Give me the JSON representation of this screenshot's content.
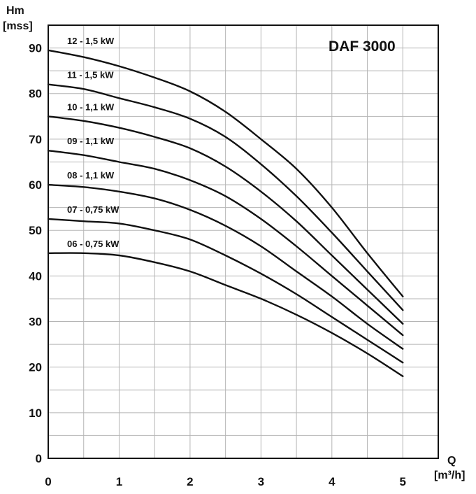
{
  "chart_data": {
    "type": "line",
    "title": "DAF 3000",
    "ylabel": [
      "Hm",
      "[mss]"
    ],
    "xlabel": [
      "Q",
      "[m³/h]"
    ],
    "xlim": [
      0,
      5.5
    ],
    "ylim": [
      0,
      95
    ],
    "x_ticks": [
      0,
      1,
      2,
      3,
      4,
      5
    ],
    "y_ticks": [
      0,
      10,
      20,
      30,
      40,
      50,
      60,
      70,
      80,
      90
    ],
    "grid": true,
    "x": [
      0,
      0.5,
      1,
      1.5,
      2,
      2.5,
      3,
      3.5,
      4,
      4.5,
      5
    ],
    "series": [
      {
        "name": "12 - 1,5 kW",
        "values": [
          89.5,
          88,
          86,
          83.5,
          80.5,
          76,
          70,
          63.5,
          55,
          45,
          35.5
        ]
      },
      {
        "name": "11 - 1,5 kW",
        "values": [
          82,
          81,
          79,
          77,
          74.5,
          70.5,
          64.5,
          57.5,
          49.5,
          41,
          32.5
        ]
      },
      {
        "name": "10 - 1,1 kW",
        "values": [
          75,
          74,
          72.5,
          70.5,
          68,
          64,
          58.5,
          52,
          44.5,
          37,
          29.5
        ]
      },
      {
        "name": "09 - 1,1 kW",
        "values": [
          67.5,
          66.5,
          65,
          63.5,
          61,
          57.5,
          52.5,
          46.5,
          40,
          33.5,
          27
        ]
      },
      {
        "name": "08 - 1,1 kW",
        "values": [
          60,
          59.5,
          58.5,
          57,
          54.5,
          51,
          46.5,
          41,
          35.5,
          29.5,
          24
        ]
      },
      {
        "name": "07 - 0,75 kW",
        "values": [
          52.5,
          52,
          51.5,
          50,
          48,
          44.5,
          40.5,
          36,
          31,
          26,
          21
        ]
      },
      {
        "name": "06 - 0,75 kW",
        "values": [
          45,
          45,
          44.5,
          43,
          41,
          38,
          35,
          31.5,
          27.5,
          23,
          18
        ]
      }
    ]
  }
}
